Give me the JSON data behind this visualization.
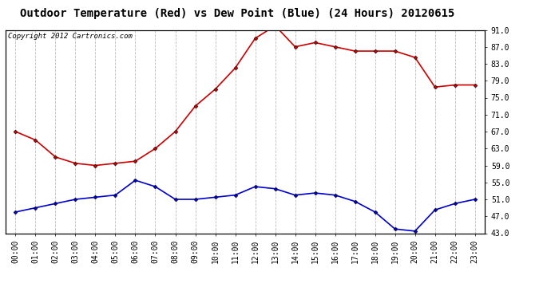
{
  "title": "Outdoor Temperature (Red) vs Dew Point (Blue) (24 Hours) 20120615",
  "copyright": "Copyright 2012 Cartronics.com",
  "hours": [
    "00:00",
    "01:00",
    "02:00",
    "03:00",
    "04:00",
    "05:00",
    "06:00",
    "07:00",
    "08:00",
    "09:00",
    "10:00",
    "11:00",
    "12:00",
    "13:00",
    "14:00",
    "15:00",
    "16:00",
    "17:00",
    "18:00",
    "19:00",
    "20:00",
    "21:00",
    "22:00",
    "23:00"
  ],
  "temp": [
    67.0,
    65.0,
    61.0,
    59.5,
    59.0,
    59.5,
    60.0,
    63.0,
    67.0,
    73.0,
    77.0,
    82.0,
    89.0,
    92.0,
    87.0,
    88.0,
    87.0,
    86.0,
    86.0,
    86.0,
    84.5,
    77.5,
    78.0,
    78.0
  ],
  "dew": [
    48.0,
    49.0,
    50.0,
    51.0,
    51.5,
    52.0,
    55.5,
    54.0,
    51.0,
    51.0,
    51.5,
    52.0,
    54.0,
    53.5,
    52.0,
    52.5,
    52.0,
    50.5,
    48.0,
    44.0,
    43.5,
    48.5,
    50.0,
    51.0
  ],
  "temp_color": "#cc0000",
  "dew_color": "#0000cc",
  "bg_color": "#ffffff",
  "grid_color": "#bbbbbb",
  "ylim_min": 43.0,
  "ylim_max": 91.0,
  "yticks": [
    43.0,
    47.0,
    51.0,
    55.0,
    59.0,
    63.0,
    67.0,
    71.0,
    75.0,
    79.0,
    83.0,
    87.0,
    91.0
  ],
  "marker": "D",
  "marker_size": 2.5,
  "linewidth": 1.2,
  "title_fontsize": 10,
  "tick_fontsize": 7,
  "copyright_fontsize": 6.5
}
